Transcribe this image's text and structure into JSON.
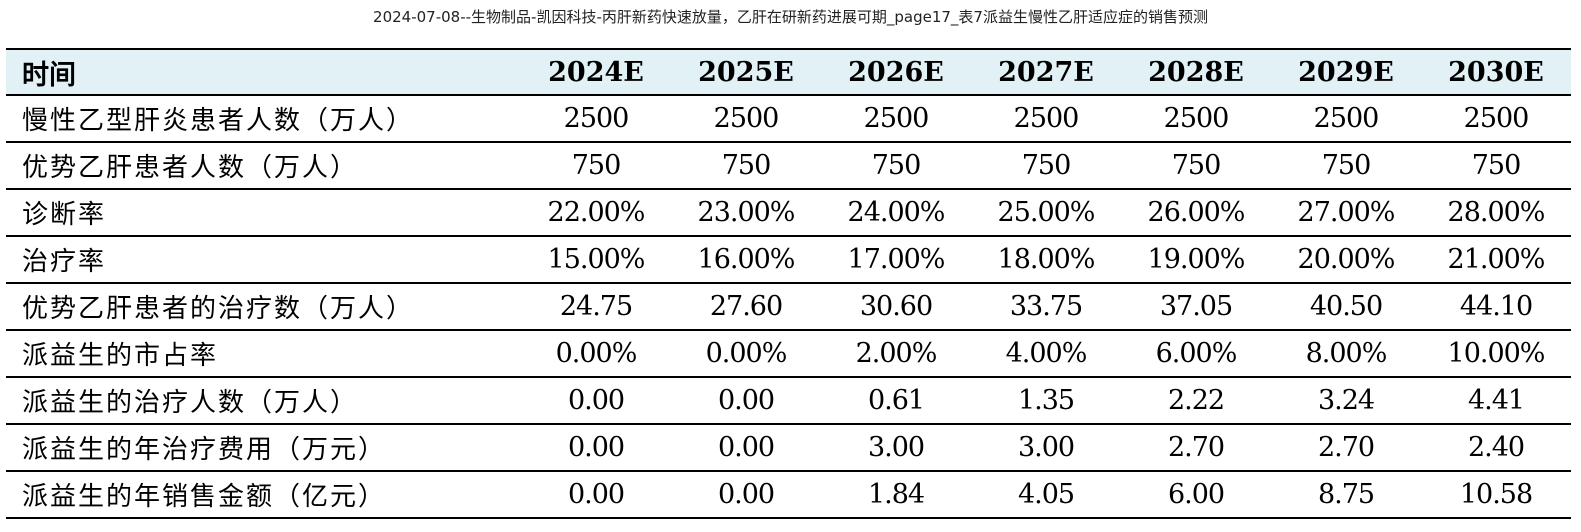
{
  "caption": "2024-07-08--生物制品-凯因科技-丙肝新药快速放量，乙肝在研新药进展可期_page17_表7派益生慢性乙肝适应症的销售预测",
  "table": {
    "headers": [
      "时间",
      "2024E",
      "2025E",
      "2026E",
      "2027E",
      "2028E",
      "2029E",
      "2030E"
    ],
    "rows": [
      {
        "label": "慢性乙型肝炎患者人数（万人）",
        "values": [
          "2500",
          "2500",
          "2500",
          "2500",
          "2500",
          "2500",
          "2500"
        ]
      },
      {
        "label": "优势乙肝患者人数（万人）",
        "values": [
          "750",
          "750",
          "750",
          "750",
          "750",
          "750",
          "750"
        ]
      },
      {
        "label": "诊断率",
        "values": [
          "22.00%",
          "23.00%",
          "24.00%",
          "25.00%",
          "26.00%",
          "27.00%",
          "28.00%"
        ]
      },
      {
        "label": "治疗率",
        "values": [
          "15.00%",
          "16.00%",
          "17.00%",
          "18.00%",
          "19.00%",
          "20.00%",
          "21.00%"
        ]
      },
      {
        "label": "优势乙肝患者的治疗数（万人）",
        "values": [
          "24.75",
          "27.60",
          "30.60",
          "33.75",
          "37.05",
          "40.50",
          "44.10"
        ]
      },
      {
        "label": "派益生的市占率",
        "values": [
          "0.00%",
          "0.00%",
          "2.00%",
          "4.00%",
          "6.00%",
          "8.00%",
          "10.00%"
        ]
      },
      {
        "label": "派益生的治疗人数（万人）",
        "values": [
          "0.00",
          "0.00",
          "0.61",
          "1.35",
          "2.22",
          "3.24",
          "4.41"
        ]
      },
      {
        "label": "派益生的年治疗费用（万元）",
        "values": [
          "0.00",
          "0.00",
          "3.00",
          "3.00",
          "2.70",
          "2.70",
          "2.40"
        ]
      },
      {
        "label": "派益生的年销售金额（亿元）",
        "values": [
          "0.00",
          "0.00",
          "1.84",
          "4.05",
          "6.00",
          "8.75",
          "10.58"
        ]
      }
    ]
  }
}
